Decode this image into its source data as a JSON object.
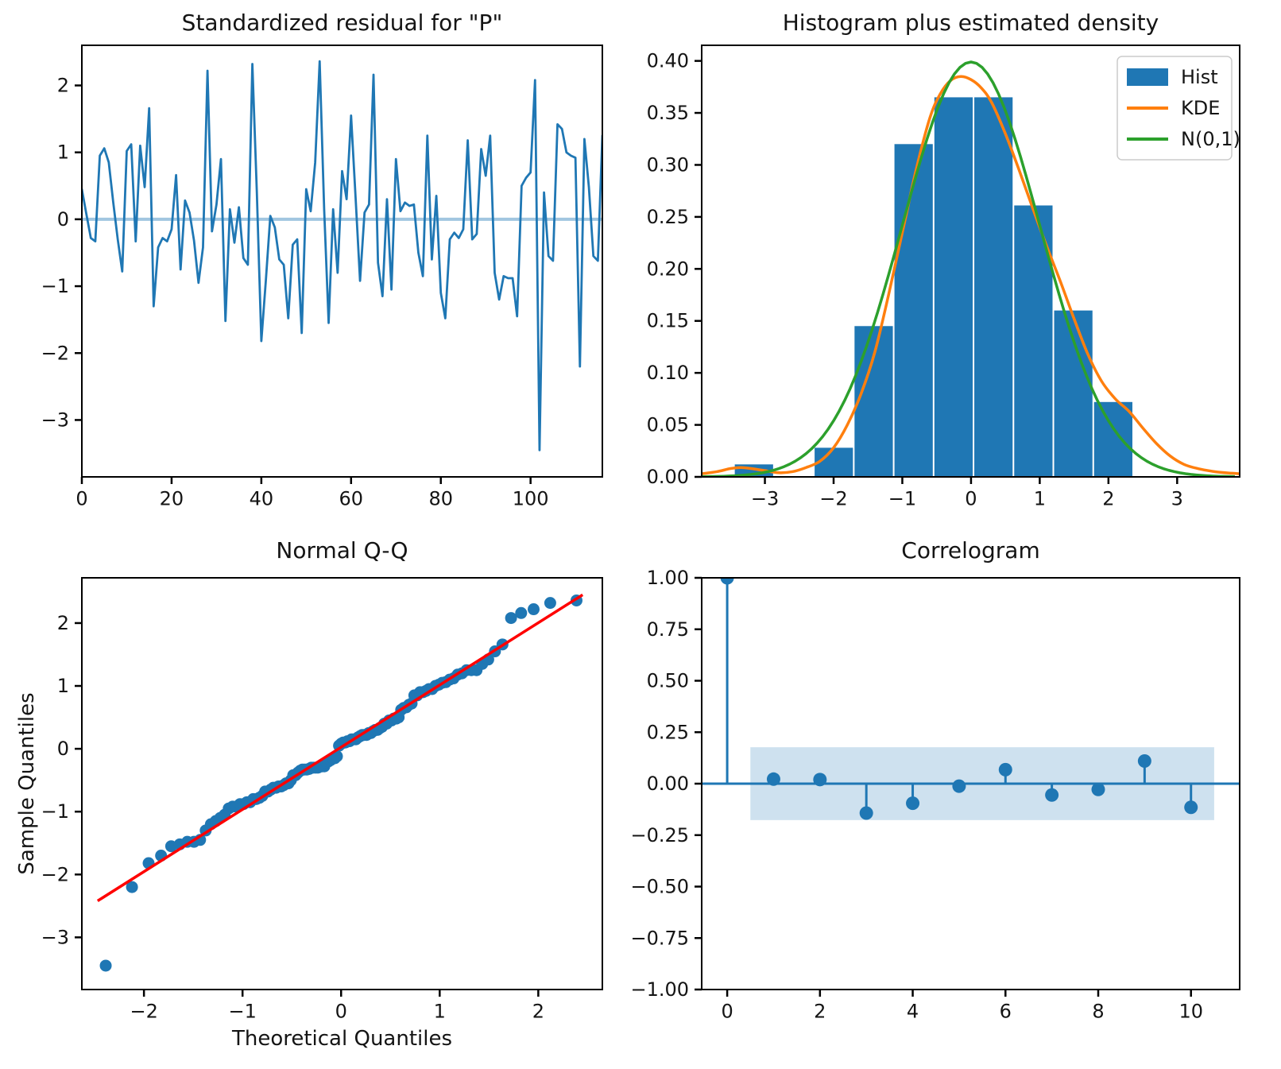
{
  "figure": {
    "background": "#ffffff",
    "palette": {
      "blue": "#1f77b4",
      "zero_line_blue": "rgba(31,119,180,0.42)",
      "band_fill": "rgba(31,119,180,0.22)",
      "orange": "#ff7f0e",
      "green": "#2ca02c",
      "red": "#ff0000",
      "axis": "#000000",
      "text": "#141414",
      "legend_border": "#cccccc"
    }
  },
  "chart_data": [
    {
      "id": "residuals",
      "type": "line",
      "title": "Standardized residual for \"P\"",
      "xlim": [
        0,
        116
      ],
      "ylim": [
        -3.85,
        2.6
      ],
      "xticks": [
        0,
        20,
        40,
        60,
        80,
        100
      ],
      "yticks": [
        2,
        1,
        0,
        -1,
        -2,
        -3
      ],
      "zero_line_y": 0,
      "values": [
        0.45,
        0.08,
        -0.28,
        -0.33,
        0.95,
        1.06,
        0.85,
        0.25,
        -0.3,
        -0.78,
        1.02,
        1.12,
        -0.33,
        1.1,
        0.48,
        1.66,
        -1.3,
        -0.42,
        -0.28,
        -0.33,
        -0.15,
        0.66,
        -0.75,
        0.28,
        0.1,
        -0.32,
        -0.95,
        -0.42,
        2.22,
        -0.18,
        0.22,
        0.9,
        -1.52,
        0.15,
        -0.35,
        0.18,
        -0.58,
        -0.68,
        2.32,
        0.4,
        -1.82,
        -0.92,
        0.05,
        -0.12,
        -0.6,
        -0.68,
        -1.48,
        -0.38,
        -0.3,
        -1.7,
        0.45,
        0.12,
        0.85,
        2.36,
        0.15,
        -1.55,
        0.15,
        -0.8,
        0.72,
        0.3,
        1.55,
        0.33,
        -0.92,
        0.1,
        0.22,
        2.16,
        -0.65,
        -1.15,
        0.3,
        -1.05,
        0.9,
        0.12,
        0.25,
        0.2,
        0.22,
        -0.5,
        -0.85,
        1.25,
        -0.6,
        0.35,
        -1.1,
        -1.48,
        -0.3,
        -0.2,
        -0.28,
        -0.15,
        1.18,
        -0.3,
        -0.22,
        1.05,
        0.65,
        1.25,
        -0.8,
        -1.2,
        -0.85,
        -0.88,
        -0.88,
        -1.45,
        0.5,
        0.62,
        0.7,
        2.08,
        -3.45,
        0.4,
        -0.55,
        -0.62,
        1.42,
        1.35,
        1.0,
        0.95,
        0.92,
        -2.2,
        1.2,
        0.48,
        -0.55,
        -0.62,
        1.25
      ]
    },
    {
      "id": "histogram",
      "type": "bar",
      "title": "Histogram plus estimated density",
      "xlim": [
        -3.92,
        3.91
      ],
      "ylim": [
        0,
        0.415
      ],
      "xticks": [
        -3,
        -2,
        -1,
        0,
        1,
        2,
        3
      ],
      "yticks": [
        0,
        0.05,
        0.1,
        0.15,
        0.2,
        0.25,
        0.3,
        0.35,
        0.4
      ],
      "bin_edges": [
        -3.45,
        -2.869,
        -2.288,
        -1.707,
        -1.126,
        -0.545,
        0.036,
        0.617,
        1.198,
        1.779,
        2.36
      ],
      "bin_heights": [
        0.012,
        0,
        0.028,
        0.145,
        0.32,
        0.365,
        0.365,
        0.261,
        0.16,
        0.072
      ],
      "kde": {
        "x": [
          -3.92,
          -3.7,
          -3.5,
          -3.35,
          -3.2,
          -3.0,
          -2.8,
          -2.6,
          -2.4,
          -2.2,
          -2.0,
          -1.8,
          -1.6,
          -1.4,
          -1.2,
          -1.0,
          -0.8,
          -0.6,
          -0.45,
          -0.3,
          -0.15,
          0.0,
          0.15,
          0.3,
          0.5,
          0.7,
          0.9,
          1.1,
          1.3,
          1.5,
          1.7,
          1.9,
          2.1,
          2.3,
          2.5,
          2.7,
          2.9,
          3.1,
          3.3,
          3.55,
          3.8,
          3.91
        ],
        "y": [
          0.003,
          0.005,
          0.008,
          0.009,
          0.008,
          0.006,
          0.004,
          0.005,
          0.009,
          0.015,
          0.028,
          0.05,
          0.08,
          0.12,
          0.175,
          0.235,
          0.295,
          0.345,
          0.368,
          0.381,
          0.385,
          0.382,
          0.374,
          0.36,
          0.33,
          0.295,
          0.258,
          0.222,
          0.188,
          0.152,
          0.118,
          0.092,
          0.075,
          0.063,
          0.047,
          0.032,
          0.02,
          0.012,
          0.008,
          0.005,
          0.0035,
          0.003
        ]
      },
      "normal_curve_label": "N(0,1)",
      "legend": [
        {
          "label": "Hist",
          "color": "#1f77b4",
          "swatch": "patch"
        },
        {
          "label": "KDE",
          "color": "#ff7f0e",
          "swatch": "line"
        },
        {
          "label": "N(0,1)",
          "color": "#2ca02c",
          "swatch": "line"
        }
      ]
    },
    {
      "id": "qq",
      "type": "scatter",
      "title": "Normal Q-Q",
      "xlabel": "Theoretical Quantiles",
      "ylabel": "Sample Quantiles",
      "xlim": [
        -2.63,
        2.65
      ],
      "ylim": [
        -3.83,
        2.72
      ],
      "xticks": [
        -2,
        -1,
        0,
        1,
        2
      ],
      "yticks": [
        2,
        1,
        0,
        -1,
        -2,
        -3
      ],
      "reference_line": {
        "x1": -2.47,
        "y1": -2.42,
        "x2": 2.45,
        "y2": 2.45
      },
      "sample_quantiles_from": "residuals.values sorted ascending vs normal order statistics i/(n+1)"
    },
    {
      "id": "correlogram",
      "type": "stem",
      "title": "Correlogram",
      "xlim": [
        -0.55,
        11.05
      ],
      "ylim": [
        -1,
        1
      ],
      "xticks": [
        0,
        2,
        4,
        6,
        8,
        10
      ],
      "yticks": [
        1,
        0.75,
        0.5,
        0.25,
        0,
        -0.25,
        -0.5,
        -0.75,
        -1
      ],
      "lags": [
        0,
        1,
        2,
        3,
        4,
        5,
        6,
        7,
        8,
        9,
        10
      ],
      "acf": [
        1.0,
        0.022,
        0.02,
        -0.143,
        -0.095,
        -0.012,
        0.068,
        -0.055,
        -0.028,
        0.11,
        -0.115
      ],
      "confidence_band": {
        "x_start": 0.5,
        "x_end": 10.5,
        "low": -0.177,
        "high": 0.177
      }
    }
  ]
}
